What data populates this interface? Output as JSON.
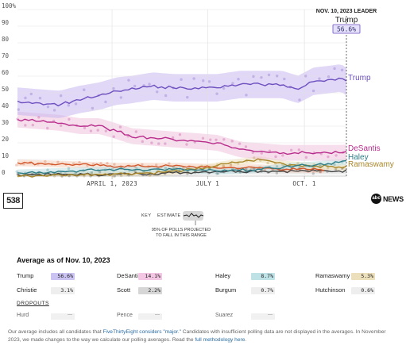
{
  "chart_data": {
    "type": "line",
    "ylim": [
      0,
      100
    ],
    "yticks": [
      "100%",
      "90",
      "80",
      "70",
      "60",
      "50",
      "40",
      "30",
      "20",
      "10",
      "0"
    ],
    "xticks": [
      {
        "label": "APRIL 1, 2023",
        "date": "2023-04-01"
      },
      {
        "label": "JULY 1",
        "date": "2023-07-01"
      },
      {
        "label": "OCT. 1",
        "date": "2023-10-01"
      }
    ],
    "xrange": [
      "2023-01-01",
      "2023-11-10"
    ],
    "leader": {
      "date_label": "NOV. 10, 2023 LEADER",
      "name": "Trump",
      "value": "56.6%"
    },
    "series": [
      {
        "name": "Trump",
        "label": "Trump",
        "color": "#6d4fbf",
        "band_color": "#c9b6ee",
        "points": [
          [
            "2023-01-01",
            45
          ],
          [
            "2023-01-20",
            44
          ],
          [
            "2023-02-10",
            43
          ],
          [
            "2023-03-01",
            46
          ],
          [
            "2023-03-20",
            48
          ],
          [
            "2023-04-05",
            51
          ],
          [
            "2023-04-20",
            52
          ],
          [
            "2023-05-10",
            54
          ],
          [
            "2023-05-30",
            53
          ],
          [
            "2023-06-20",
            53
          ],
          [
            "2023-07-10",
            53
          ],
          [
            "2023-08-01",
            55
          ],
          [
            "2023-08-20",
            55
          ],
          [
            "2023-09-10",
            55
          ],
          [
            "2023-09-25",
            52
          ],
          [
            "2023-10-10",
            57
          ],
          [
            "2023-10-25",
            58
          ],
          [
            "2023-11-05",
            59
          ],
          [
            "2023-11-10",
            56.6
          ]
        ]
      },
      {
        "name": "DeSantis",
        "label": "DeSantis",
        "color": "#b82c8c",
        "band_color": "#f1c2dd",
        "points": [
          [
            "2023-01-01",
            34
          ],
          [
            "2023-01-20",
            33
          ],
          [
            "2023-02-10",
            32
          ],
          [
            "2023-03-01",
            30
          ],
          [
            "2023-03-20",
            30
          ],
          [
            "2023-04-05",
            27
          ],
          [
            "2023-04-20",
            24
          ],
          [
            "2023-05-10",
            23
          ],
          [
            "2023-05-30",
            22
          ],
          [
            "2023-06-20",
            21
          ],
          [
            "2023-07-10",
            20
          ],
          [
            "2023-08-01",
            16
          ],
          [
            "2023-08-20",
            15
          ],
          [
            "2023-09-10",
            14
          ],
          [
            "2023-09-25",
            14
          ],
          [
            "2023-10-10",
            14
          ],
          [
            "2023-10-25",
            14
          ],
          [
            "2023-11-05",
            14
          ],
          [
            "2023-11-10",
            14.1
          ]
        ]
      },
      {
        "name": "Haley",
        "label": "Haley",
        "color": "#2e7c86",
        "band_color": "#bfe0e3",
        "points": [
          [
            "2023-01-01",
            2
          ],
          [
            "2023-02-20",
            3
          ],
          [
            "2023-04-05",
            4
          ],
          [
            "2023-06-01",
            4
          ],
          [
            "2023-07-15",
            3
          ],
          [
            "2023-08-20",
            4
          ],
          [
            "2023-09-20",
            6
          ],
          [
            "2023-10-15",
            7
          ],
          [
            "2023-11-10",
            8.7
          ]
        ]
      },
      {
        "name": "Ramaswamy",
        "label": "Ramaswamy",
        "color": "#a8862a",
        "band_color": "#eee0b8",
        "points": [
          [
            "2023-01-01",
            0
          ],
          [
            "2023-03-10",
            1
          ],
          [
            "2023-05-10",
            2
          ],
          [
            "2023-06-20",
            4
          ],
          [
            "2023-07-25",
            8
          ],
          [
            "2023-08-20",
            10
          ],
          [
            "2023-09-15",
            7
          ],
          [
            "2023-10-15",
            6
          ],
          [
            "2023-11-10",
            5.3
          ]
        ]
      },
      {
        "name": "Pence",
        "label": "",
        "color": "#d2572a",
        "band_color": "#f4cdb9",
        "points": [
          [
            "2023-01-01",
            8
          ],
          [
            "2023-02-20",
            7
          ],
          [
            "2023-04-05",
            6
          ],
          [
            "2023-06-01",
            6
          ],
          [
            "2023-07-15",
            5
          ],
          [
            "2023-08-20",
            5
          ],
          [
            "2023-09-20",
            4
          ],
          [
            "2023-10-20",
            4
          ]
        ]
      },
      {
        "name": "Christie",
        "label": "",
        "color": "#444444",
        "band_color": "#dddddd",
        "points": [
          [
            "2023-01-01",
            1
          ],
          [
            "2023-04-01",
            1
          ],
          [
            "2023-06-01",
            2
          ],
          [
            "2023-07-15",
            3
          ],
          [
            "2023-09-01",
            3
          ],
          [
            "2023-11-10",
            3.1
          ]
        ]
      }
    ]
  },
  "key": {
    "label": "KEY",
    "estimate": "ESTIMATE",
    "note": "95% OF POLLS PROJECTED TO FALL IN THIS RANGE"
  },
  "logos": {
    "left": "538",
    "right": "NEWS",
    "right_mark": "abc"
  },
  "average": {
    "title": "Average as of Nov. 10, 2023",
    "rows": [
      [
        {
          "name": "Trump",
          "value": "56.6%",
          "bg": "#cbc3f2"
        },
        {
          "name": "DeSantis",
          "value": "14.1%",
          "bg": "#f3c6e3"
        },
        {
          "name": "Haley",
          "value": "8.7%",
          "bg": "#bfe2e6"
        },
        {
          "name": "Ramaswamy",
          "value": "5.3%",
          "bg": "#ecdfbb"
        }
      ],
      [
        {
          "name": "Christie",
          "value": "3.1%",
          "bg": "#eeeeee"
        },
        {
          "name": "Scott",
          "value": "2.2%",
          "bg": "#d6d6d6"
        },
        {
          "name": "Burgum",
          "value": "0.7%",
          "bg": "#eeeeee"
        },
        {
          "name": "Hutchinson",
          "value": "0.6%",
          "bg": "#eeeeee"
        }
      ]
    ],
    "dropouts_label": "DROPOUTS",
    "dropouts": [
      {
        "name": "Hurd",
        "value": "—"
      },
      {
        "name": "Pence",
        "value": "—"
      },
      {
        "name": "Suarez",
        "value": "—"
      }
    ]
  },
  "footnote": {
    "t1": "Our average includes all candidates that ",
    "link1": "FiveThirtyEight considers \"major.\"",
    "t2": " Candidates with insufficient polling data are not displayed in the averages. In November 2023, we made changes to the way we calculate our polling averages. Read the ",
    "link2": "full methodology here",
    "t3": "."
  }
}
